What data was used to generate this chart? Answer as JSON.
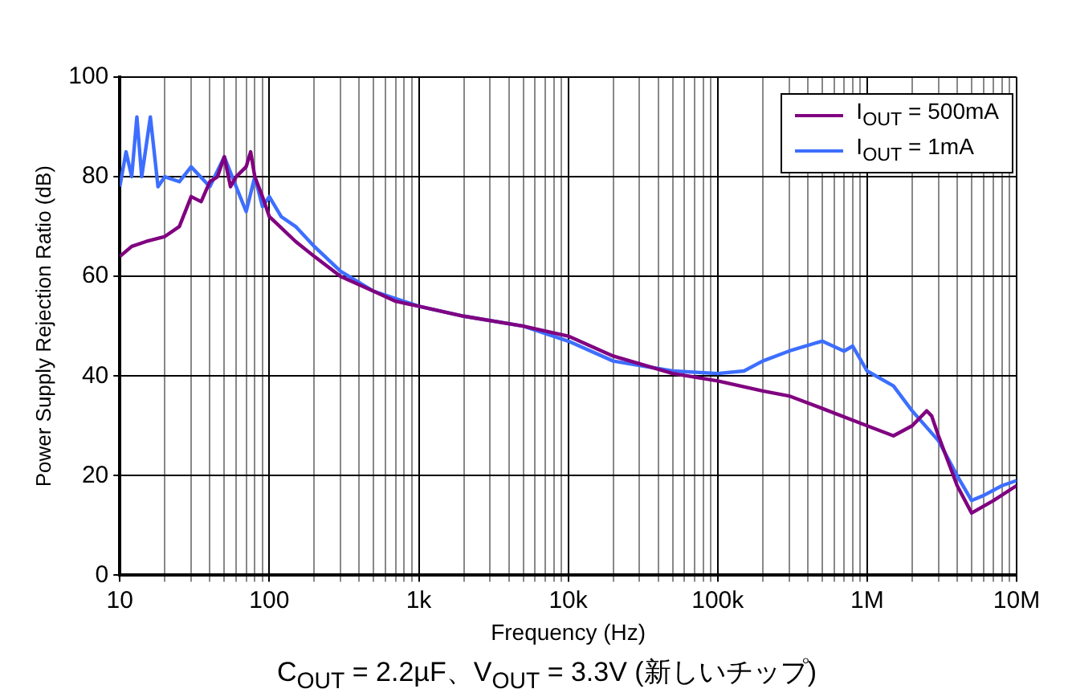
{
  "chart_data": {
    "type": "line",
    "xlabel": "Frequency (Hz)",
    "ylabel": "Power Supply Rejection Ratio (dB)",
    "log": "x",
    "grid": true,
    "legend": "top right",
    "marker": "none",
    "line_style": "solid",
    "annotations": [
      "C$_{OUT}$ = 2.2µF、V$_{OUT}$ = 3.3V (新しいチップ)"
    ],
    "xlim": [
      10,
      10000000
    ],
    "xticks": [
      10,
      {
        "value": 20,
        "label": null
      },
      {
        "value": 30,
        "label": null
      },
      {
        "value": 40,
        "label": null
      },
      {
        "value": 50,
        "label": null
      },
      {
        "value": 60,
        "label": null
      },
      {
        "value": 70,
        "label": null
      },
      {
        "value": 80,
        "label": null
      },
      {
        "value": 90,
        "label": null
      },
      100,
      {
        "value": 200,
        "label": null
      },
      {
        "value": 300,
        "label": null
      },
      {
        "value": 400,
        "label": null
      },
      {
        "value": 500,
        "label": null
      },
      {
        "value": 600,
        "label": null
      },
      {
        "value": 700,
        "label": null
      },
      {
        "value": 800,
        "label": null
      },
      {
        "value": 900,
        "label": null
      },
      {
        "value": 1000,
        "label": "1k"
      },
      {
        "value": 2000,
        "label": null
      },
      {
        "value": 3000,
        "label": null
      },
      {
        "value": 4000,
        "label": null
      },
      {
        "value": 5000,
        "label": null
      },
      {
        "value": 6000,
        "label": null
      },
      {
        "value": 7000,
        "label": null
      },
      {
        "value": 8000,
        "label": null
      },
      {
        "value": 9000,
        "label": null
      },
      {
        "value": 10000,
        "label": "10k"
      },
      {
        "value": 20000,
        "label": null
      },
      {
        "value": 30000,
        "label": null
      },
      {
        "value": 40000,
        "label": null
      },
      {
        "value": 50000,
        "label": null
      },
      {
        "value": 60000,
        "label": null
      },
      {
        "value": 70000,
        "label": null
      },
      {
        "value": 80000,
        "label": null
      },
      {
        "value": 90000,
        "label": null
      },
      {
        "value": 100000,
        "label": "100k"
      },
      {
        "value": 200000,
        "label": null
      },
      {
        "value": 300000,
        "label": null
      },
      {
        "value": 400000,
        "label": null
      },
      {
        "value": 500000,
        "label": null
      },
      {
        "value": 600000,
        "label": null
      },
      {
        "value": 700000,
        "label": null
      },
      {
        "value": 800000,
        "label": null
      },
      {
        "value": 900000,
        "label": null
      },
      {
        "value": 1000000,
        "label": "1M"
      },
      {
        "value": 2000000,
        "label": null
      },
      {
        "value": 3000000,
        "label": null
      },
      {
        "value": 4000000,
        "label": null
      },
      {
        "value": 5000000,
        "label": null
      },
      {
        "value": 6000000,
        "label": null
      },
      {
        "value": 7000000,
        "label": null
      },
      {
        "value": 8000000,
        "label": null
      },
      {
        "value": 9000000,
        "label": null
      },
      {
        "value": 10000000,
        "label": "10M"
      }
    ],
    "ylim": [
      0,
      100
    ],
    "yticks": [
      0,
      20,
      40,
      60,
      80,
      100
    ],
    "series": [
      {
        "name": "I$_{OUT}$ = 500mA",
        "color": "#800080",
        "x": [
          10,
          12,
          15,
          20,
          25,
          30,
          35,
          40,
          45,
          50,
          55,
          60,
          70,
          75,
          80,
          90,
          100,
          150,
          200,
          300,
          500,
          700,
          1000,
          2000,
          5000,
          10000,
          20000,
          50000,
          100000,
          200000,
          300000,
          500000,
          1000000,
          1500000,
          2000000,
          2500000,
          2700000,
          3000000,
          4000000,
          5000000,
          7000000,
          10000000
        ],
        "values": [
          64,
          66,
          67,
          68,
          70,
          76,
          75,
          79,
          80,
          84,
          78,
          80,
          82,
          85,
          80,
          76,
          72,
          67,
          64,
          60,
          57,
          55,
          54,
          52,
          50,
          48,
          44,
          40.5,
          39,
          37,
          36,
          33.5,
          30,
          28,
          30,
          33,
          32,
          28,
          18,
          12.5,
          15,
          18
        ]
      },
      {
        "name": "I$_{OUT}$ = 1mA",
        "color": "#3d6eff",
        "x": [
          10,
          11,
          12,
          13,
          14,
          16,
          18,
          20,
          25,
          30,
          40,
          50,
          60,
          70,
          80,
          90,
          100,
          120,
          150,
          200,
          300,
          500,
          1000,
          2000,
          5000,
          10000,
          20000,
          50000,
          100000,
          150000,
          200000,
          300000,
          500000,
          700000,
          800000,
          1000000,
          1500000,
          2000000,
          3000000,
          4000000,
          5000000,
          6000000,
          8000000,
          10000000
        ],
        "values": [
          78,
          85,
          80,
          92,
          80,
          92,
          78,
          80,
          79,
          82,
          78,
          84,
          78,
          73,
          80,
          74,
          76,
          72,
          70,
          66,
          61,
          57,
          54,
          52,
          50,
          47,
          43,
          41,
          40.5,
          41,
          43,
          45,
          47,
          45,
          46,
          41,
          38,
          33,
          27,
          20,
          15,
          16,
          18,
          19
        ]
      }
    ]
  }
}
